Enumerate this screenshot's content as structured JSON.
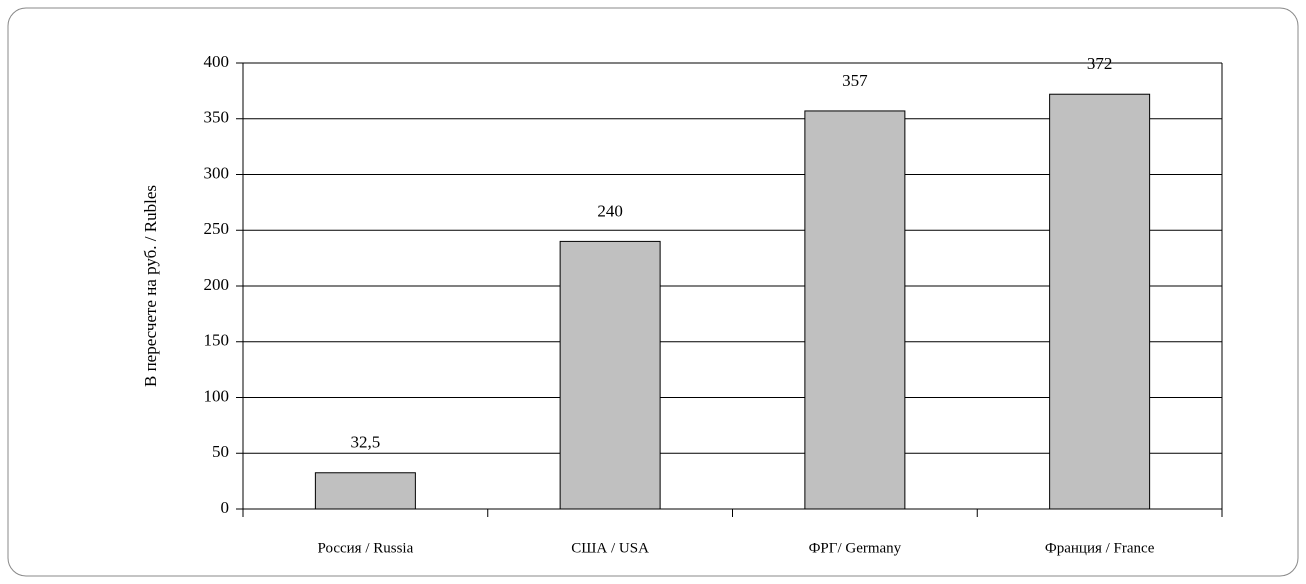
{
  "chart_data": {
    "type": "bar",
    "y_label": "В пересчете на руб. / Rubles",
    "categories": [
      "Россия / Russia",
      "США / USA",
      "ФРГ/ Germany",
      "Франция / France"
    ],
    "values": [
      32.5,
      240,
      357,
      372
    ],
    "value_labels": [
      "32,5",
      "240",
      "357",
      "372"
    ],
    "color": "#c0c0c0",
    "ylim": [
      0,
      400
    ],
    "yticks": [
      0,
      50,
      100,
      150,
      200,
      250,
      300,
      350,
      400
    ],
    "grid": true
  }
}
